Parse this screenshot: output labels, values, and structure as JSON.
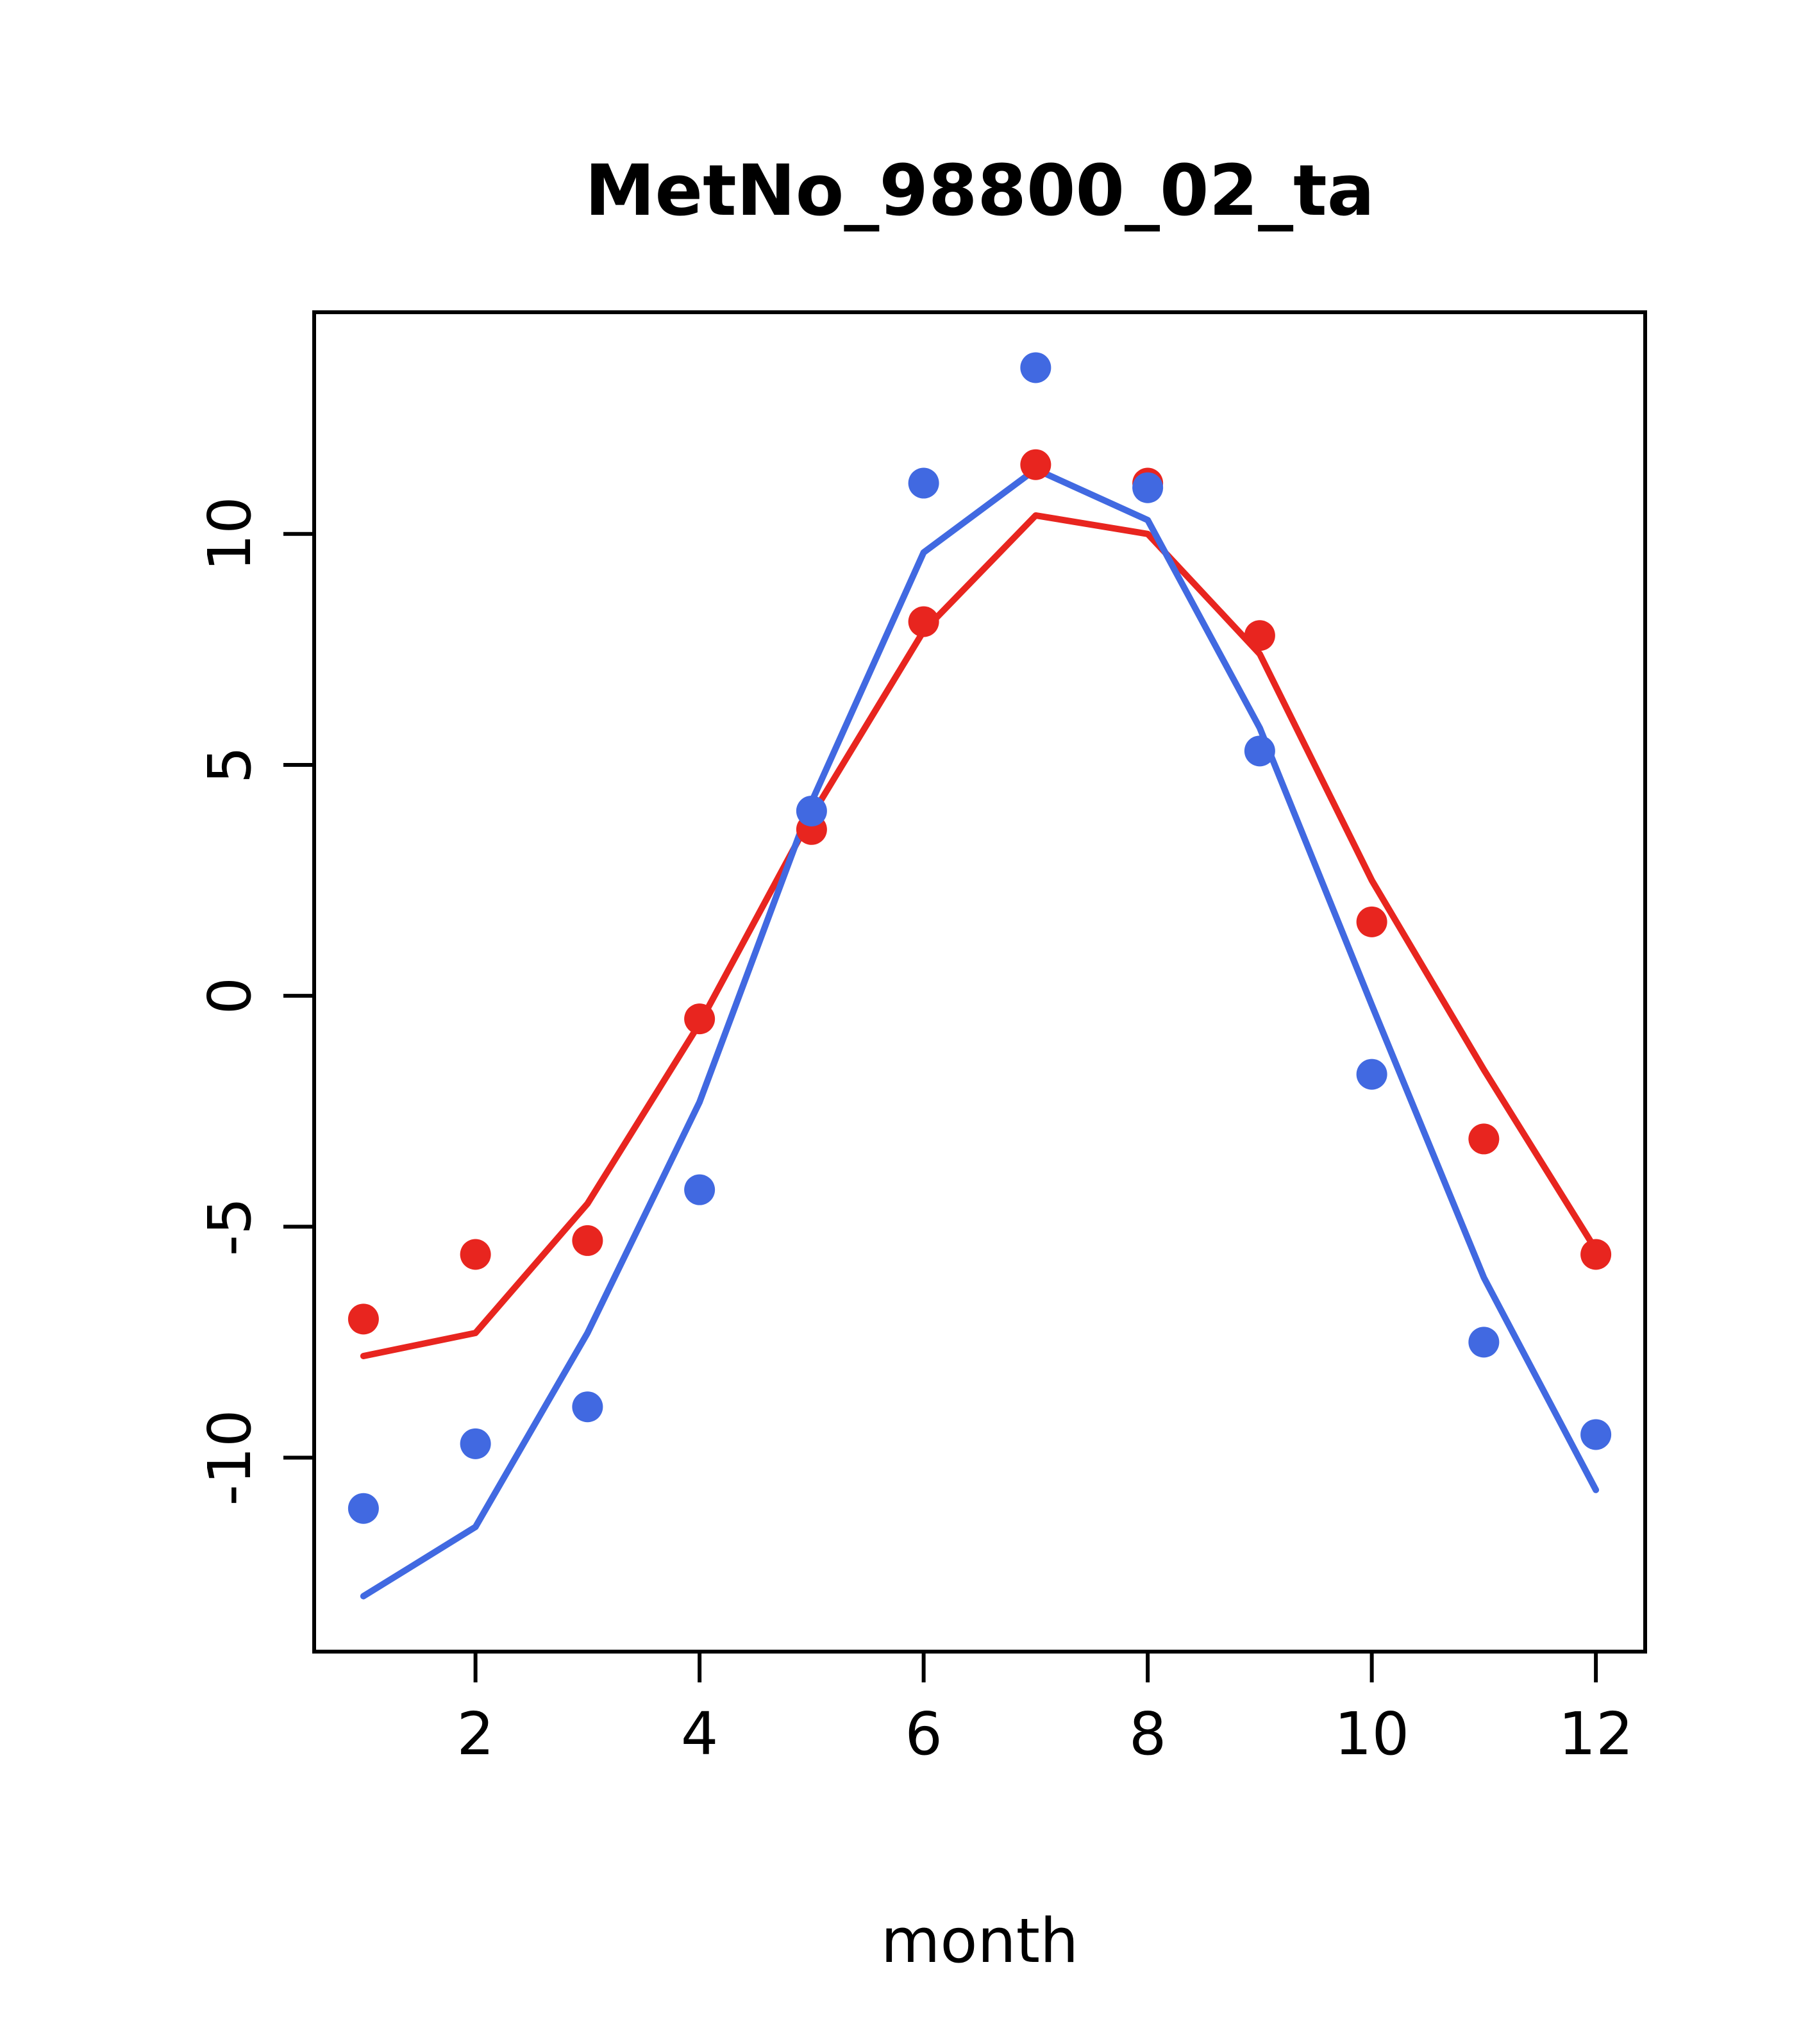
{
  "page": {
    "background": "#ffffff"
  },
  "chart_data": {
    "type": "line",
    "title": "MetNo_98800_02_ta",
    "xlabel": "month",
    "ylabel": "",
    "grid": false,
    "legend_position": "none",
    "x": [
      1,
      2,
      3,
      4,
      5,
      6,
      7,
      8,
      9,
      10,
      11,
      12
    ],
    "xticks": [
      2,
      4,
      6,
      8,
      10,
      12
    ],
    "yticks": [
      -10,
      -5,
      0,
      5,
      10
    ],
    "xlim": [
      0.56,
      12.44
    ],
    "ylim": [
      -14.2,
      14.8
    ],
    "colors": {
      "red_series": "#e8251f",
      "blue_series": "#4169e1",
      "axis": "#000000",
      "background": "#ffffff"
    },
    "series": [
      {
        "name": "red-line",
        "kind": "line",
        "color": "#e8251f",
        "values": [
          -7.8,
          -7.3,
          -4.5,
          -0.6,
          3.9,
          7.9,
          10.4,
          10.0,
          7.4,
          2.5,
          -1.6,
          -5.5
        ]
      },
      {
        "name": "blue-line",
        "kind": "line",
        "color": "#4169e1",
        "values": [
          -13.0,
          -11.5,
          -7.3,
          -2.3,
          4.2,
          9.6,
          11.4,
          10.3,
          5.8,
          -0.2,
          -6.1,
          -10.7
        ]
      },
      {
        "name": "red-points",
        "kind": "points",
        "color": "#e8251f",
        "values": [
          -7.0,
          -5.6,
          -5.3,
          -0.5,
          3.6,
          8.1,
          11.5,
          11.1,
          7.8,
          1.6,
          -3.1,
          -5.6
        ]
      },
      {
        "name": "blue-points",
        "kind": "points",
        "color": "#4169e1",
        "values": [
          -11.1,
          -9.7,
          -8.9,
          -4.2,
          4.0,
          11.1,
          13.6,
          11.0,
          5.3,
          -1.7,
          -7.5,
          -9.5
        ]
      }
    ]
  }
}
